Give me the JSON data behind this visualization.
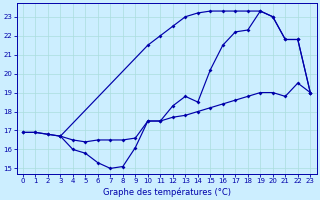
{
  "xlabel": "Graphe des températures (°C)",
  "background_color": "#cceeff",
  "line_color": "#0000aa",
  "grid_color": "#aadddd",
  "xlim": [
    -0.5,
    23.5
  ],
  "ylim": [
    14.7,
    23.7
  ],
  "yticks": [
    15,
    16,
    17,
    18,
    19,
    20,
    21,
    22,
    23
  ],
  "xticks": [
    0,
    1,
    2,
    3,
    4,
    5,
    6,
    7,
    8,
    9,
    10,
    11,
    12,
    13,
    14,
    15,
    16,
    17,
    18,
    19,
    20,
    21,
    22,
    23
  ],
  "line1_x": [
    0,
    1,
    2,
    3,
    4,
    5,
    6,
    7,
    8,
    9,
    10,
    11,
    12,
    13,
    14,
    15,
    16,
    17,
    18,
    19,
    20,
    21,
    22,
    23
  ],
  "line1_y": [
    16.9,
    16.9,
    16.8,
    16.7,
    16.0,
    15.8,
    15.3,
    15.0,
    15.1,
    16.1,
    17.5,
    17.5,
    18.3,
    18.8,
    18.5,
    20.2,
    21.5,
    22.2,
    22.3,
    23.3,
    23.0,
    21.8,
    21.8,
    19.0
  ],
  "line2_x": [
    3,
    10,
    11,
    12,
    13,
    14,
    15,
    16,
    17,
    18,
    19,
    20,
    21,
    22,
    23
  ],
  "line2_y": [
    16.7,
    21.5,
    22.0,
    22.5,
    23.0,
    23.2,
    23.3,
    23.3,
    23.3,
    23.3,
    23.3,
    23.0,
    21.8,
    21.8,
    19.0
  ],
  "line3_x": [
    0,
    1,
    2,
    3,
    4,
    5,
    6,
    7,
    8,
    9,
    10,
    11,
    12,
    13,
    14,
    15,
    16,
    17,
    18,
    19,
    20,
    21,
    22,
    23
  ],
  "line3_y": [
    16.9,
    16.9,
    16.8,
    16.7,
    16.5,
    16.4,
    16.5,
    16.5,
    16.5,
    16.6,
    17.5,
    17.5,
    17.7,
    17.8,
    18.0,
    18.2,
    18.4,
    18.6,
    18.8,
    19.0,
    19.0,
    18.8,
    19.5,
    19.0
  ]
}
